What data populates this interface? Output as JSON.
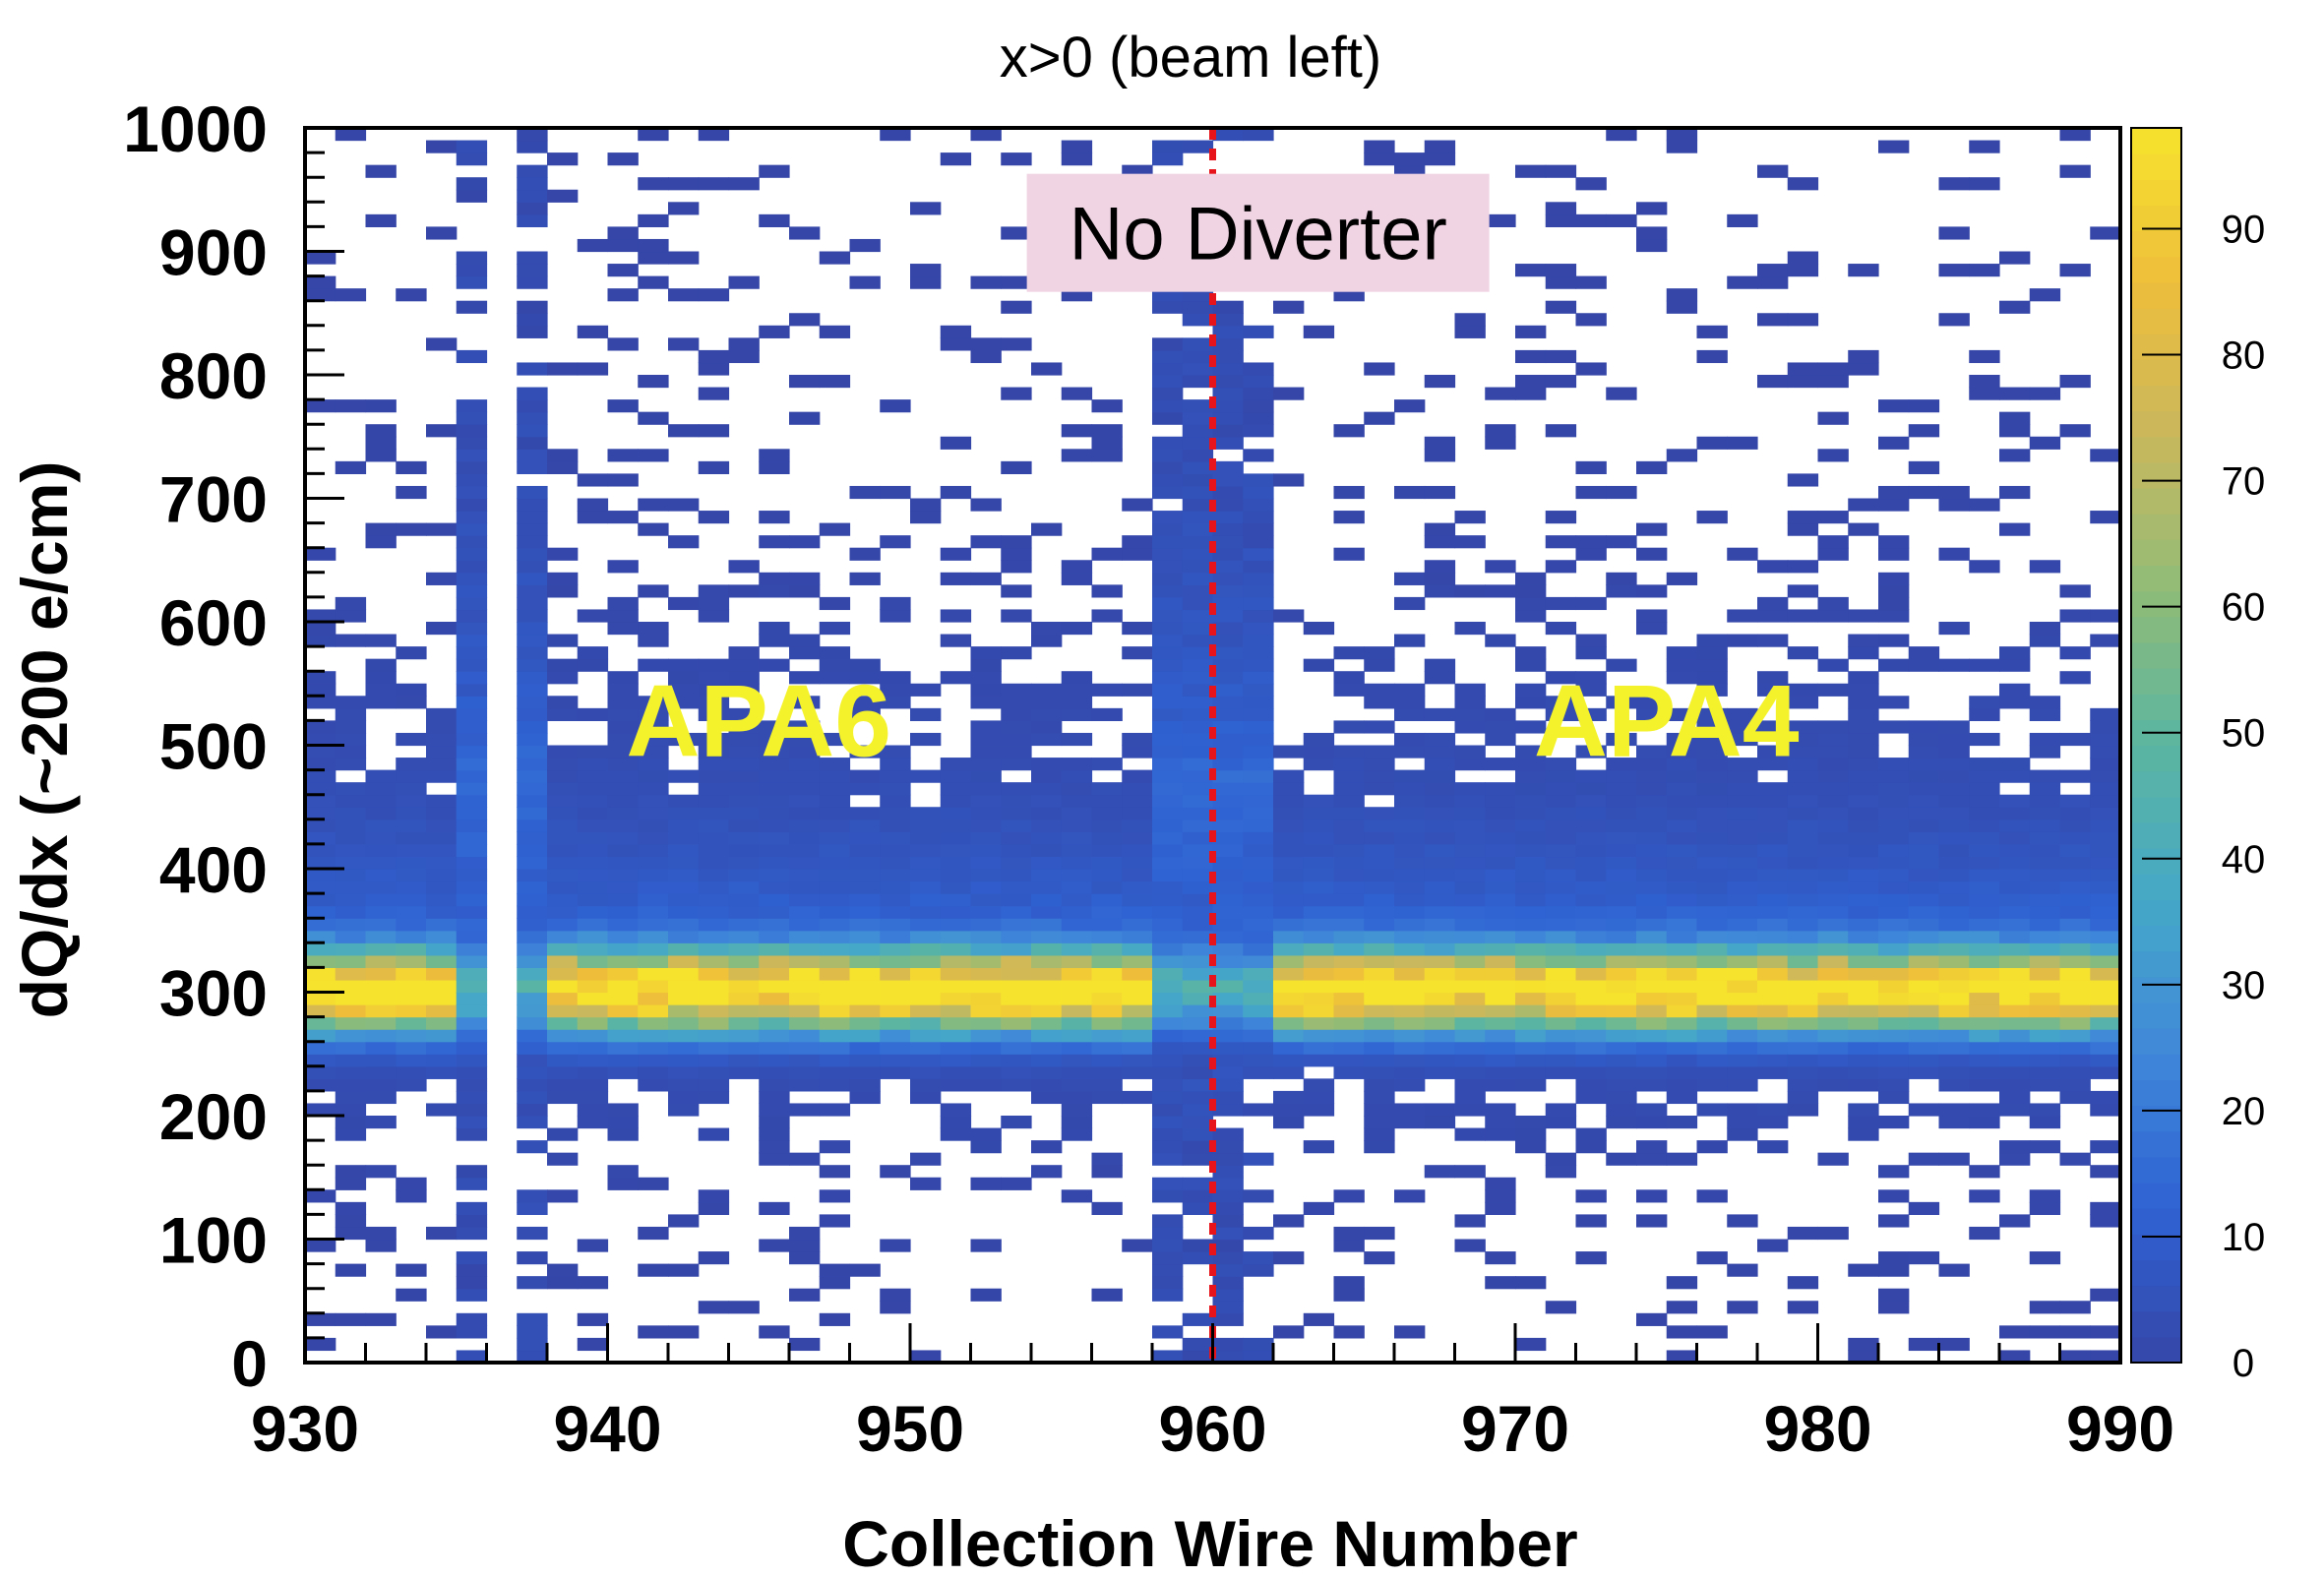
{
  "chart_data": {
    "type": "heatmap",
    "title": "x>0 (beam left)",
    "xlabel": "Collection Wire Number",
    "ylabel": "dQ/dx (~200 e/cm)",
    "xlim": [
      930,
      990
    ],
    "ylim": [
      0,
      1000
    ],
    "x_ticks": [
      "930",
      "940",
      "950",
      "960",
      "970",
      "980",
      "990"
    ],
    "y_ticks": [
      "0",
      "100",
      "200",
      "300",
      "400",
      "500",
      "600",
      "700",
      "800",
      "900",
      "1000"
    ],
    "colorbar": {
      "range": [
        0,
        98
      ],
      "ticks": [
        "0",
        "10",
        "20",
        "30",
        "40",
        "50",
        "60",
        "70",
        "80",
        "90"
      ],
      "colors": [
        "#3546a8",
        "#2f62d2",
        "#3f87d9",
        "#46a8c8",
        "#5bb5a1",
        "#8fbc78",
        "#c9b85d",
        "#eebd3b",
        "#f6e32d"
      ]
    },
    "bin_width_x": 1,
    "bin_height_y": 10,
    "band": {
      "peak_dqdx": 300,
      "peak_counts": 95
    },
    "dead_wires": [
      936
    ],
    "noisy_wires": [
      935,
      937,
      958,
      959,
      960,
      961
    ],
    "annotations": [
      {
        "text": "APA6",
        "x": 945,
        "y": 520
      },
      {
        "text": "APA4",
        "x": 975,
        "y": 520
      },
      {
        "text": "No Diverter",
        "x": 961.5,
        "y": 915
      }
    ],
    "divider": {
      "x": 960,
      "color": "#e8141c",
      "style": "dotted"
    },
    "grid": false,
    "legend": "colorbar-right"
  }
}
